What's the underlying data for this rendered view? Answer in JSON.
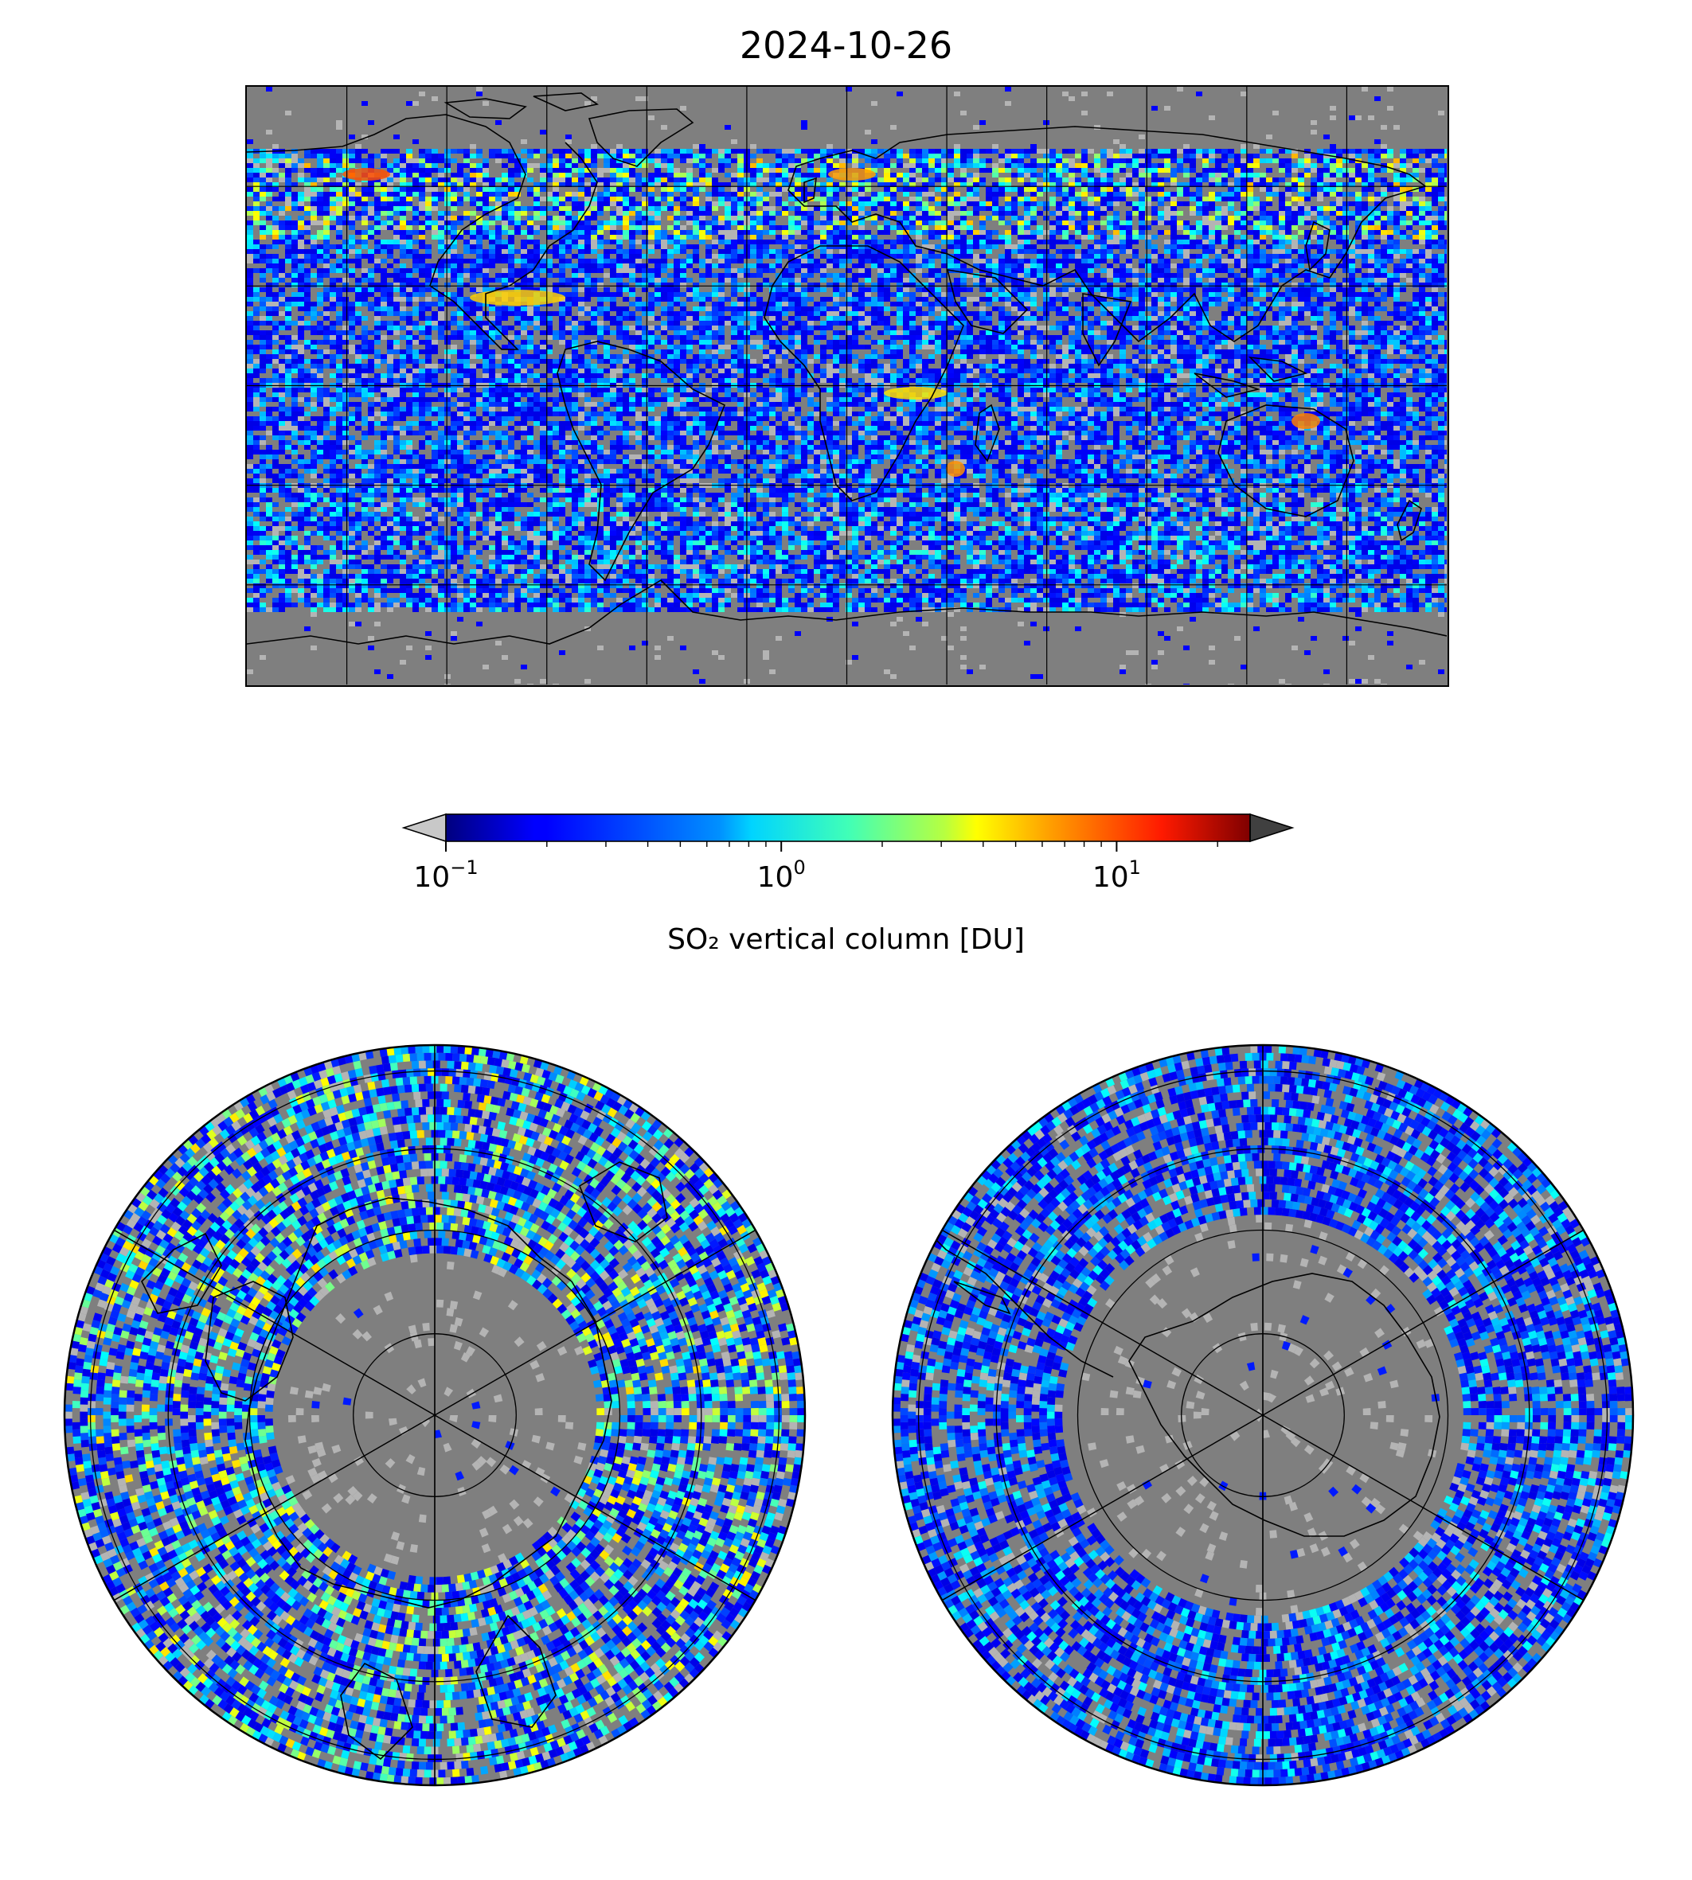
{
  "title": "2024-10-26",
  "colorbar": {
    "label": "SO₂ vertical column [DU]",
    "ticks": [
      {
        "base": "10",
        "exp": "−1",
        "value": 0.1
      },
      {
        "base": "10",
        "exp": "0",
        "value": 1
      },
      {
        "base": "10",
        "exp": "1",
        "value": 10
      }
    ],
    "scale": "log",
    "range": [
      0.1,
      25
    ],
    "colormap": "jet",
    "extend": "both",
    "under_color": "#c8c8c8",
    "over_color": "#404040"
  },
  "colors": {
    "no_data": "#7f7f7f",
    "below_detection": "#b4b4b4",
    "coastline": "#000000",
    "gridline": "#000000"
  },
  "maps": [
    {
      "name": "world-map",
      "projection": "equirectangular",
      "grid": "30° longitude / 30° latitude"
    },
    {
      "name": "north-polar-map",
      "projection": "north polar stereographic"
    },
    {
      "name": "south-polar-map",
      "projection": "south polar stereographic"
    }
  ]
}
